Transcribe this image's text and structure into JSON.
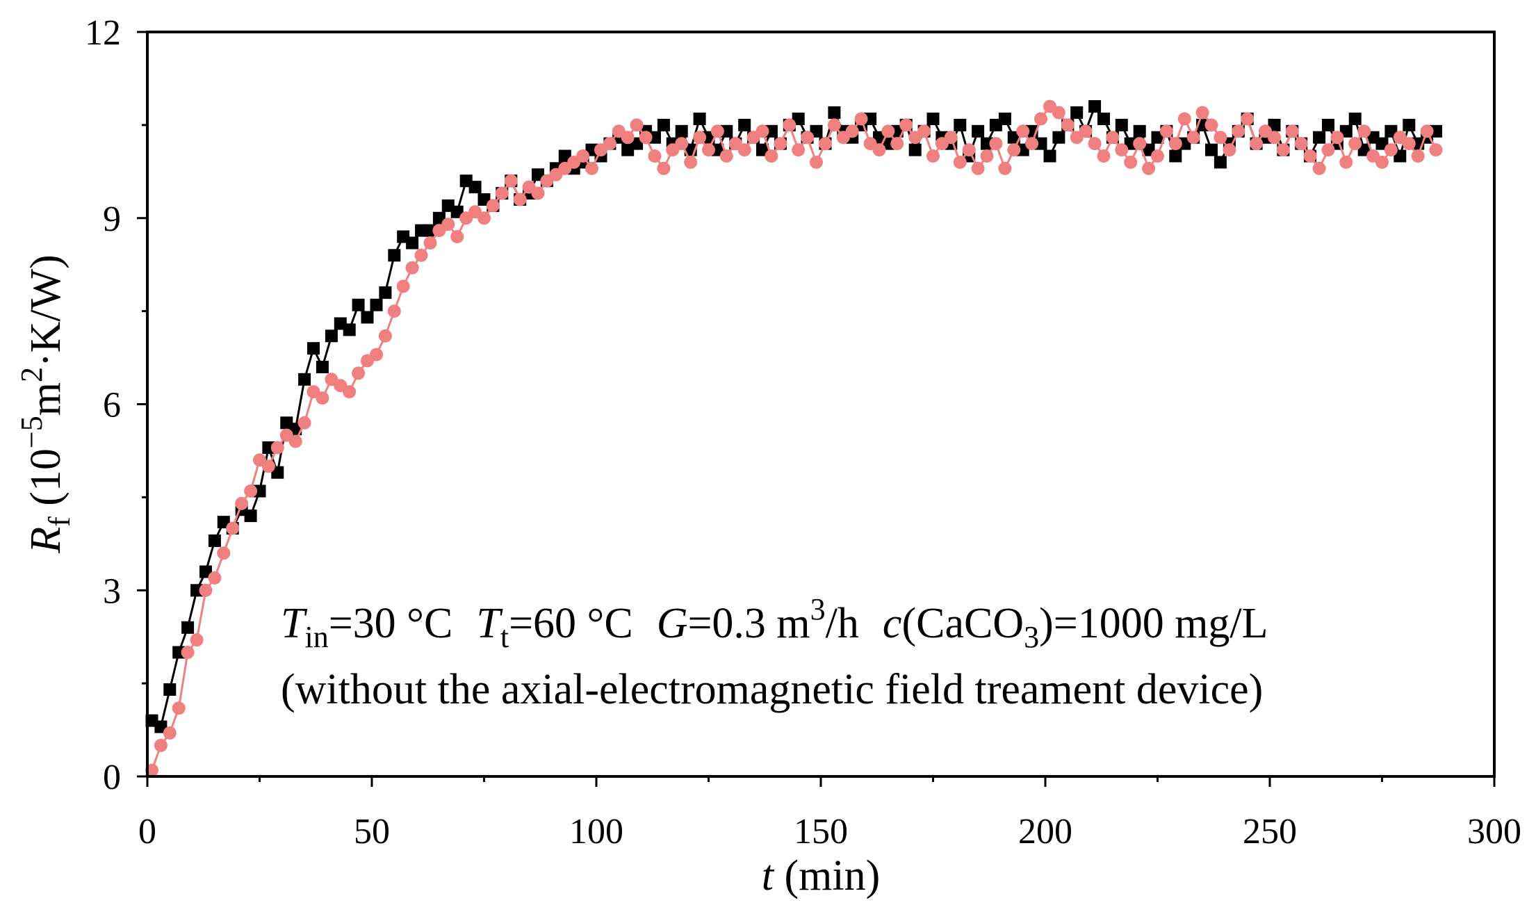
{
  "chart_data": {
    "type": "line",
    "title": "",
    "xlabel": "t (min)",
    "xlabel_parts": {
      "var": "t",
      "unit": " (min)"
    },
    "ylabel": "R_f (10^-5 m^2·K/W)",
    "ylabel_parts": {
      "var": "R",
      "sub": "f",
      "open": " (10",
      "exp": "−5",
      "mid": "m",
      "exp2": "2",
      "unit": "·K/W)"
    },
    "xlim": [
      0,
      300
    ],
    "ylim": [
      0,
      12
    ],
    "xticks": [
      0,
      50,
      100,
      150,
      200,
      250,
      300
    ],
    "yticks": [
      0,
      3,
      6,
      9,
      12
    ],
    "xtick_labels": [
      "0",
      "50",
      "100",
      "150",
      "200",
      "250",
      "300"
    ],
    "ytick_labels": [
      "0",
      "3",
      "6",
      "9",
      "12"
    ],
    "grid": false,
    "colors": {
      "series_black": "#000000",
      "series_pink": "#f08080",
      "axis": "#000000"
    },
    "annotation": {
      "t_in_var": "T",
      "t_in_sub": "in",
      "t_in_val": "=30 °C",
      "t_t_var": "T",
      "t_t_sub": "t",
      "t_t_val": "=60 °C",
      "g_var": "G",
      "g_val": "=0.3 m",
      "g_exp": "3",
      "g_unit": "/h",
      "c_var": "c",
      "c_open": "(CaCO",
      "c_sub": "3",
      "c_close": ")=1000 mg/L",
      "line2": "(without the axial-electromagnetic field treament device)"
    },
    "series": [
      {
        "name": "black-squares",
        "marker": "square",
        "color": "#000000",
        "x": [
          1,
          3,
          5,
          7,
          9,
          11,
          13,
          15,
          17,
          19,
          21,
          23,
          25,
          27,
          29,
          31,
          33,
          35,
          37,
          39,
          41,
          43,
          45,
          47,
          49,
          51,
          53,
          55,
          57,
          59,
          61,
          63,
          65,
          67,
          69,
          71,
          73,
          75,
          77,
          79,
          81,
          83,
          85,
          87,
          89,
          91,
          93,
          95,
          97,
          99,
          101,
          103,
          105,
          107,
          109,
          111,
          113,
          115,
          117,
          119,
          121,
          123,
          125,
          127,
          129,
          131,
          133,
          135,
          137,
          139,
          141,
          143,
          145,
          147,
          149,
          151,
          153,
          155,
          157,
          159,
          161,
          163,
          165,
          167,
          169,
          171,
          173,
          175,
          177,
          179,
          181,
          183,
          185,
          187,
          189,
          191,
          193,
          195,
          197,
          199,
          201,
          203,
          205,
          207,
          209,
          211,
          213,
          215,
          217,
          219,
          221,
          223,
          225,
          227,
          229,
          231,
          233,
          235,
          237,
          239,
          241,
          243,
          245,
          247,
          249,
          251,
          253,
          255,
          257,
          259,
          261,
          263,
          265,
          267,
          269,
          271,
          273,
          275,
          277,
          279,
          281,
          283,
          285,
          287
        ],
        "y": [
          0.9,
          0.8,
          1.4,
          2.0,
          2.4,
          3.0,
          3.3,
          3.8,
          4.1,
          4.0,
          4.3,
          4.2,
          4.6,
          5.3,
          4.9,
          5.7,
          5.6,
          6.4,
          6.9,
          6.6,
          7.1,
          7.3,
          7.2,
          7.6,
          7.4,
          7.6,
          7.8,
          8.4,
          8.7,
          8.6,
          8.8,
          8.8,
          9.0,
          9.2,
          9.1,
          9.6,
          9.5,
          9.3,
          9.2,
          9.4,
          9.6,
          9.3,
          9.4,
          9.7,
          9.6,
          9.8,
          10.0,
          9.8,
          9.9,
          10.1,
          10.0,
          10.2,
          10.3,
          10.1,
          10.2,
          10.4,
          10.3,
          10.5,
          10.2,
          10.4,
          10.1,
          10.6,
          10.3,
          10.1,
          10.4,
          10.2,
          10.5,
          10.3,
          10.1,
          10.4,
          10.2,
          10.5,
          10.6,
          10.3,
          10.4,
          10.2,
          10.7,
          10.4,
          10.3,
          10.5,
          10.6,
          10.3,
          10.2,
          10.4,
          10.5,
          10.1,
          10.4,
          10.6,
          10.3,
          10.2,
          10.5,
          10.0,
          10.4,
          10.2,
          10.5,
          10.6,
          10.3,
          10.1,
          10.4,
          10.2,
          10.0,
          10.3,
          10.5,
          10.7,
          10.4,
          10.8,
          10.6,
          10.3,
          10.5,
          10.2,
          10.4,
          10.1,
          10.3,
          10.4,
          10.0,
          10.2,
          10.3,
          10.5,
          10.1,
          9.9,
          10.2,
          10.4,
          10.6,
          10.2,
          10.3,
          10.5,
          10.1,
          10.4,
          10.2,
          10.0,
          10.3,
          10.5,
          10.2,
          10.4,
          10.6,
          10.1,
          10.3,
          10.2,
          10.4,
          10.0,
          10.5,
          10.2,
          10.3,
          10.4
        ]
      },
      {
        "name": "pink-circles",
        "marker": "circle",
        "color": "#f08080",
        "x": [
          1,
          3,
          5,
          7,
          9,
          11,
          13,
          15,
          17,
          19,
          21,
          23,
          25,
          27,
          29,
          31,
          33,
          35,
          37,
          39,
          41,
          43,
          45,
          47,
          49,
          51,
          53,
          55,
          57,
          59,
          61,
          63,
          65,
          67,
          69,
          71,
          73,
          75,
          77,
          79,
          81,
          83,
          85,
          87,
          89,
          91,
          93,
          95,
          97,
          99,
          101,
          103,
          105,
          107,
          109,
          111,
          113,
          115,
          117,
          119,
          121,
          123,
          125,
          127,
          129,
          131,
          133,
          135,
          137,
          139,
          141,
          143,
          145,
          147,
          149,
          151,
          153,
          155,
          157,
          159,
          161,
          163,
          165,
          167,
          169,
          171,
          173,
          175,
          177,
          179,
          181,
          183,
          185,
          187,
          189,
          191,
          193,
          195,
          197,
          199,
          201,
          203,
          205,
          207,
          209,
          211,
          213,
          215,
          217,
          219,
          221,
          223,
          225,
          227,
          229,
          231,
          233,
          235,
          237,
          239,
          241,
          243,
          245,
          247,
          249,
          251,
          253,
          255,
          257,
          259,
          261,
          263,
          265,
          267,
          269,
          271,
          273,
          275,
          277,
          279,
          281,
          283,
          285,
          287
        ],
        "y": [
          0.1,
          0.5,
          0.7,
          1.1,
          2.0,
          2.2,
          3.0,
          3.2,
          3.6,
          4.0,
          4.4,
          4.6,
          5.1,
          5.0,
          5.3,
          5.5,
          5.4,
          5.7,
          6.2,
          6.1,
          6.4,
          6.3,
          6.2,
          6.5,
          6.7,
          6.8,
          7.1,
          7.5,
          7.9,
          8.2,
          8.4,
          8.6,
          8.8,
          8.9,
          8.7,
          9.0,
          9.1,
          9.0,
          9.2,
          9.4,
          9.6,
          9.3,
          9.5,
          9.4,
          9.6,
          9.7,
          9.8,
          9.9,
          10.0,
          9.8,
          10.1,
          10.2,
          10.4,
          10.3,
          10.5,
          10.3,
          10.0,
          9.8,
          10.1,
          10.2,
          9.9,
          10.3,
          10.1,
          10.4,
          10.0,
          10.2,
          10.1,
          10.3,
          10.4,
          10.0,
          10.2,
          10.5,
          10.1,
          10.3,
          9.9,
          10.2,
          10.5,
          10.3,
          10.4,
          10.6,
          10.2,
          10.1,
          10.4,
          10.2,
          10.5,
          10.3,
          10.4,
          10.0,
          10.2,
          10.3,
          9.9,
          10.1,
          9.8,
          10.0,
          10.2,
          9.8,
          10.1,
          10.4,
          10.2,
          10.6,
          10.8,
          10.7,
          10.5,
          10.3,
          10.4,
          10.2,
          10.0,
          10.3,
          10.1,
          9.9,
          10.2,
          9.8,
          10.0,
          10.4,
          10.2,
          10.6,
          10.3,
          10.7,
          10.5,
          10.3,
          10.1,
          10.4,
          10.6,
          10.2,
          10.4,
          10.3,
          10.1,
          10.4,
          10.2,
          10.0,
          9.8,
          10.1,
          10.3,
          9.9,
          10.2,
          10.4,
          10.0,
          9.9,
          10.1,
          10.3,
          10.2,
          10.0,
          10.4,
          10.1
        ]
      }
    ]
  }
}
